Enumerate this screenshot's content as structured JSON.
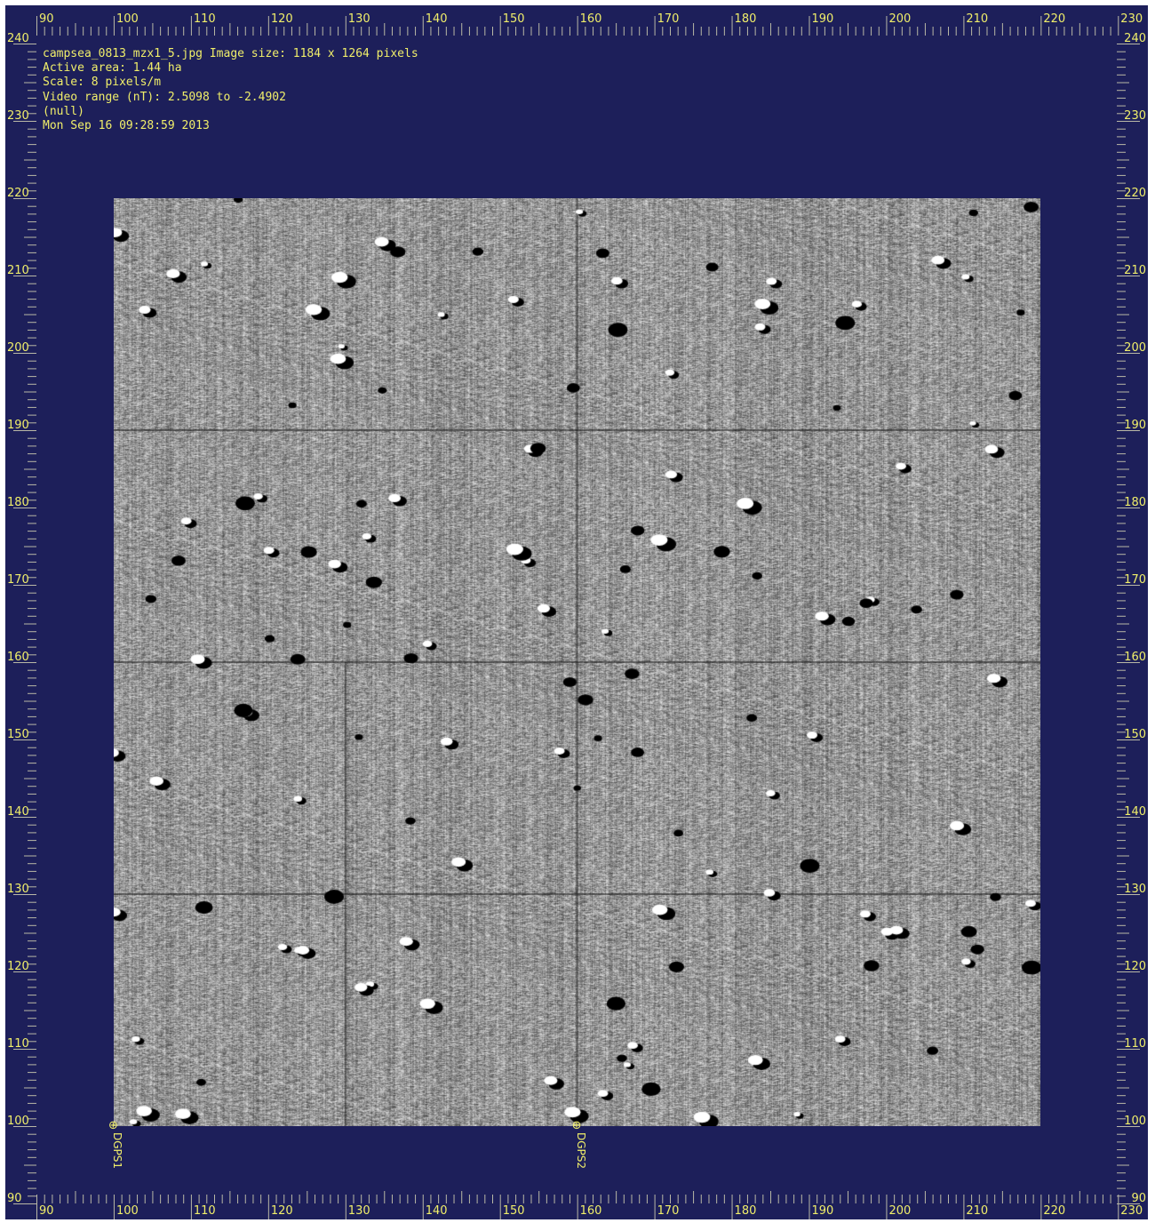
{
  "header": {
    "line1": "campsea_0813_mzx1_5.jpg Image size: 1184 x 1264 pixels",
    "line2": "Active area: 1.44 ha",
    "line3": "Scale: 8 pixels/m",
    "line4": "Video range (nT): 2.5098 to -2.4902",
    "line5": "(null)",
    "line6": "Mon Sep 16 09:28:59 2013"
  },
  "axes": {
    "x_range": [
      90,
      230
    ],
    "y_range": [
      90,
      240
    ],
    "x_ticks": [
      "90",
      "100",
      "110",
      "120",
      "130",
      "140",
      "150",
      "160",
      "170",
      "180",
      "190",
      "200",
      "210",
      "220",
      "230"
    ],
    "y_ticks": [
      "240",
      "230",
      "220",
      "210",
      "200",
      "190",
      "180",
      "170",
      "160",
      "150",
      "140",
      "130",
      "120",
      "110",
      "100",
      "90"
    ]
  },
  "survey_area": {
    "x_range": [
      100,
      220
    ],
    "y_range": [
      100,
      220
    ]
  },
  "markers": [
    {
      "label": "DGPS1",
      "x": 100,
      "y": 100
    },
    {
      "label": "DGPS2",
      "x": 160,
      "y": 100
    }
  ],
  "colors": {
    "background": "#1d1f5a",
    "text": "#f0ee6a",
    "ruler": "#b9b8a6"
  }
}
